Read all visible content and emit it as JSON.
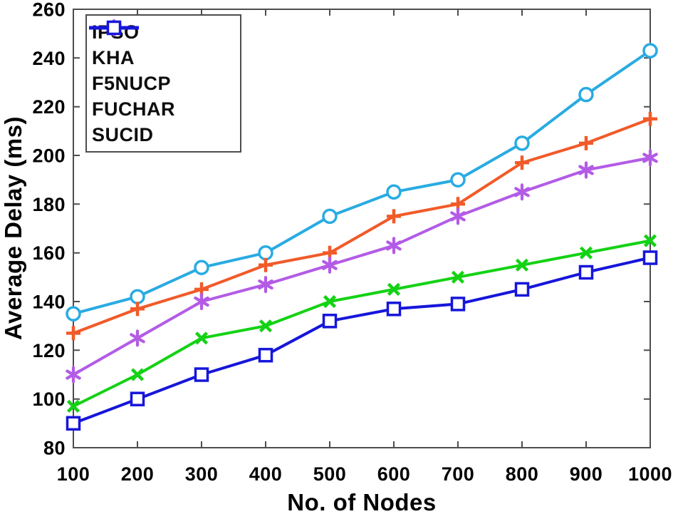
{
  "chart_data": {
    "type": "line",
    "title": "",
    "xlabel": "No. of Nodes",
    "ylabel": "Average Delay (ms)",
    "x": [
      100,
      200,
      300,
      400,
      500,
      600,
      700,
      800,
      900,
      1000
    ],
    "xlim": [
      100,
      1000
    ],
    "ylim": [
      80,
      260
    ],
    "xticks": [
      100,
      200,
      300,
      400,
      500,
      600,
      700,
      800,
      900,
      1000
    ],
    "yticks": [
      80,
      100,
      120,
      140,
      160,
      180,
      200,
      220,
      240,
      260
    ],
    "grid": false,
    "legend_position": "top-left",
    "axis_color": "#4d4d4d",
    "tick_label_color": "#000000",
    "background_color": "#ffffff",
    "series": [
      {
        "name": "IPSO",
        "color": "#29ABE2",
        "marker": "circle",
        "values": [
          135,
          142,
          154,
          160,
          175,
          185,
          190,
          205,
          225,
          243
        ]
      },
      {
        "name": "KHA",
        "color": "#F15A29",
        "marker": "plus",
        "values": [
          127,
          137,
          145,
          155,
          160,
          175,
          180,
          197,
          205,
          215
        ]
      },
      {
        "name": "F5NUCP",
        "color": "#B35BE6",
        "marker": "asterisk",
        "values": [
          110,
          125,
          140,
          147,
          155,
          163,
          175,
          185,
          194,
          199
        ]
      },
      {
        "name": "FUCHAR",
        "color": "#14D214",
        "marker": "x",
        "values": [
          97,
          110,
          125,
          130,
          140,
          145,
          150,
          155,
          160,
          165
        ]
      },
      {
        "name": "SUCID",
        "color": "#1616DB",
        "marker": "square",
        "values": [
          90,
          100,
          110,
          118,
          132,
          137,
          139,
          145,
          152,
          158
        ]
      }
    ]
  }
}
